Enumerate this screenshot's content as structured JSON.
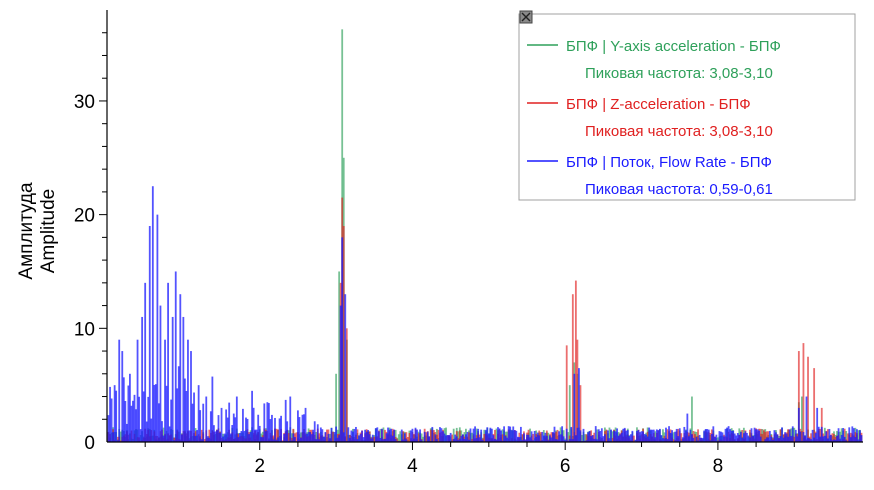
{
  "chart_data": {
    "type": "bar",
    "ylabel": [
      "Амплитуда",
      "Amplitude"
    ],
    "xlim": [
      0,
      9.9
    ],
    "ylim": [
      0,
      38
    ],
    "x_ticks": [
      {
        "value": 2,
        "label": "2"
      },
      {
        "value": 4,
        "label": "4"
      },
      {
        "value": 6,
        "label": "6"
      },
      {
        "value": 8,
        "label": "8"
      }
    ],
    "y_ticks": [
      {
        "value": 0,
        "label": "0"
      },
      {
        "value": 10,
        "label": "10"
      },
      {
        "value": 20,
        "label": "20"
      },
      {
        "value": 30,
        "label": "30"
      }
    ],
    "grid": false,
    "legend_position": "top-right",
    "legend": [
      {
        "series": "БПФ | Y-axis acceleration - БПФ",
        "peak": "Пиковая частота: 3,08-3,10",
        "color": "#2ea05a"
      },
      {
        "series": "БПФ | Z-acceleration - БПФ",
        "peak": "Пиковая частота: 3,08-3,10",
        "color": "#e02020"
      },
      {
        "series": "БПФ | Поток, Flow Rate - БПФ",
        "peak": "Пиковая частота: 0,59-0,61",
        "color": "#1a1aff"
      }
    ],
    "series": [
      {
        "name": "БПФ | Y-axis acceleration - БПФ",
        "color": "#2ea05a",
        "peaks": [
          [
            3.0,
            6
          ],
          [
            3.04,
            15
          ],
          [
            3.07,
            28
          ],
          [
            3.08,
            36.3
          ],
          [
            3.1,
            25
          ],
          [
            3.13,
            9
          ],
          [
            6.05,
            5
          ],
          [
            6.12,
            7
          ],
          [
            6.15,
            6
          ],
          [
            7.65,
            4
          ],
          [
            9.05,
            3.5
          ],
          [
            9.1,
            4
          ]
        ],
        "base": 1.3
      },
      {
        "name": "БПФ | Z-acceleration - БПФ",
        "color": "#e02020",
        "peaks": [
          [
            3.05,
            14
          ],
          [
            3.08,
            21.5
          ],
          [
            3.1,
            19
          ],
          [
            3.13,
            10
          ],
          [
            6.02,
            8.5
          ],
          [
            6.1,
            13
          ],
          [
            6.13,
            14.2
          ],
          [
            6.16,
            9
          ],
          [
            6.2,
            5
          ],
          [
            9.05,
            8
          ],
          [
            9.12,
            8.7
          ],
          [
            9.18,
            7.5
          ],
          [
            9.25,
            6.5
          ],
          [
            9.35,
            3
          ]
        ],
        "base": 1.2
      },
      {
        "name": "БПФ | Поток, Flow Rate - БПФ",
        "color": "#1a1aff",
        "peaks": [
          [
            0.1,
            5
          ],
          [
            0.15,
            9
          ],
          [
            0.2,
            8
          ],
          [
            0.3,
            6
          ],
          [
            0.4,
            9
          ],
          [
            0.45,
            11
          ],
          [
            0.5,
            14
          ],
          [
            0.55,
            19
          ],
          [
            0.6,
            22.5
          ],
          [
            0.65,
            20
          ],
          [
            0.7,
            12
          ],
          [
            0.75,
            9
          ],
          [
            0.8,
            14
          ],
          [
            0.85,
            11
          ],
          [
            0.9,
            15
          ],
          [
            0.95,
            13
          ],
          [
            1.0,
            11
          ],
          [
            1.05,
            9
          ],
          [
            1.1,
            8
          ],
          [
            1.2,
            5
          ],
          [
            1.3,
            4
          ],
          [
            1.5,
            3
          ],
          [
            1.7,
            4
          ],
          [
            1.9,
            4.5
          ],
          [
            2.1,
            3.5
          ],
          [
            2.4,
            4
          ],
          [
            2.6,
            3
          ],
          [
            3.05,
            12
          ],
          [
            3.08,
            18
          ],
          [
            3.12,
            13
          ],
          [
            6.12,
            6
          ],
          [
            6.18,
            6.5
          ],
          [
            7.6,
            2.5
          ],
          [
            9.05,
            3
          ],
          [
            9.15,
            4
          ],
          [
            9.3,
            3
          ]
        ],
        "base": 1.4
      }
    ]
  },
  "legend_close_icon": "close-icon"
}
